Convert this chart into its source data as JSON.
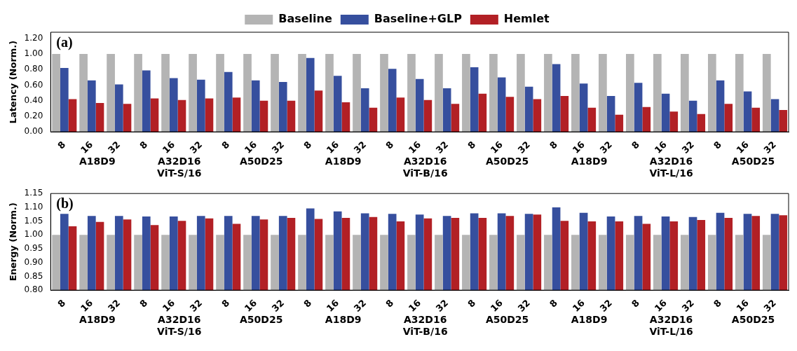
{
  "chart_data": [
    {
      "type": "bar",
      "ylabel": "Latency (Norm.)",
      "categories": [
        "8",
        "16",
        "32",
        "8",
        "16",
        "32",
        "8",
        "16",
        "32",
        "8",
        "16",
        "32",
        "8",
        "16",
        "32",
        "8",
        "16",
        "32",
        "8",
        "16",
        "32",
        "8",
        "16",
        "32",
        "8",
        "16",
        "32"
      ],
      "series": [
        {
          "name": "Baseline",
          "color": "#b4b4b4",
          "values": [
            1,
            1,
            1,
            1,
            1,
            1,
            1,
            1,
            1,
            1,
            1,
            1,
            1,
            1,
            1,
            1,
            1,
            1,
            1,
            1,
            1,
            1,
            1,
            1,
            1,
            1,
            1
          ]
        },
        {
          "name": "Baseline+GLP",
          "color": "#364f9e",
          "values": [
            0.82,
            0.66,
            0.61,
            0.79,
            0.69,
            0.67,
            0.77,
            0.66,
            0.64,
            0.95,
            0.72,
            0.56,
            0.81,
            0.68,
            0.56,
            0.83,
            0.7,
            0.58,
            0.87,
            0.62,
            0.46,
            0.63,
            0.49,
            0.4,
            0.66,
            0.52,
            0.42
          ]
        },
        {
          "name": "Hemlet",
          "color": "#b22025",
          "values": [
            0.42,
            0.37,
            0.36,
            0.43,
            0.41,
            0.43,
            0.44,
            0.4,
            0.4,
            0.53,
            0.38,
            0.31,
            0.44,
            0.41,
            0.36,
            0.49,
            0.45,
            0.42,
            0.46,
            0.31,
            0.22,
            0.32,
            0.26,
            0.23,
            0.36,
            0.31,
            0.28
          ]
        }
      ],
      "ylim": [
        0,
        1.28
      ],
      "yticks": [
        {
          "value": 0,
          "label": "0.00"
        },
        {
          "value": 0.2,
          "label": "0.20"
        },
        {
          "value": 0.4,
          "label": "0.40"
        },
        {
          "value": 0.6,
          "label": "0.60"
        },
        {
          "value": 0.8,
          "label": "0.80"
        },
        {
          "value": 1,
          "label": "1.00"
        },
        {
          "value": 1.2,
          "label": "1.20"
        }
      ],
      "grid": false,
      "legend": "top",
      "annotations": [
        "(a)",
        "A18D9",
        "A32D16",
        "A50D25",
        "A18D9",
        "A32D16",
        "A50D25",
        "A18D9",
        "A32D16",
        "A50D25",
        "ViT-S/16",
        "ViT-B/16",
        "ViT-L/16"
      ]
    },
    {
      "type": "bar",
      "ylabel": "Energy (Norm.)",
      "categories": [
        "8",
        "16",
        "32",
        "8",
        "16",
        "32",
        "8",
        "16",
        "32",
        "8",
        "16",
        "32",
        "8",
        "16",
        "32",
        "8",
        "16",
        "32",
        "8",
        "16",
        "32",
        "8",
        "16",
        "32",
        "8",
        "16",
        "32"
      ],
      "series": [
        {
          "color": "#b4b4b4",
          "values": [
            1,
            1,
            1,
            1,
            1,
            1,
            1,
            1,
            1,
            1,
            1,
            1,
            1,
            1,
            1,
            1,
            1,
            1,
            1,
            1,
            1,
            1,
            1,
            1,
            1,
            1,
            1
          ]
        },
        {
          "color": "#364f9e",
          "values": [
            1.076,
            1.069,
            1.069,
            1.067,
            1.067,
            1.069,
            1.069,
            1.069,
            1.069,
            1.096,
            1.085,
            1.078,
            1.076,
            1.074,
            1.069,
            1.078,
            1.078,
            1.076,
            1.1,
            1.08,
            1.067,
            1.069,
            1.067,
            1.065,
            1.08,
            1.076,
            1.076
          ]
        },
        {
          "color": "#b22025",
          "values": [
            1.031,
            1.047,
            1.056,
            1.036,
            1.051,
            1.06,
            1.04,
            1.056,
            1.062,
            1.058,
            1.062,
            1.065,
            1.049,
            1.06,
            1.062,
            1.062,
            1.069,
            1.074,
            1.051,
            1.049,
            1.049,
            1.04,
            1.049,
            1.054,
            1.062,
            1.069,
            1.071
          ]
        }
      ],
      "ylim": [
        0.8,
        1.15
      ],
      "yticks": [
        {
          "value": 0.8,
          "label": "0.80"
        },
        {
          "value": 0.85,
          "label": "0.85"
        },
        {
          "value": 0.9,
          "label": "0.90"
        },
        {
          "value": 0.95,
          "label": "0.95"
        },
        {
          "value": 1,
          "label": "1.00"
        },
        {
          "value": 1.05,
          "label": "1.05"
        },
        {
          "value": 1.1,
          "label": "1.10"
        },
        {
          "value": 1.15,
          "label": "1.15"
        }
      ],
      "grid": false,
      "legend": false,
      "annotations": [
        "(b)",
        "A18D9",
        "A32D16",
        "A50D25",
        "A18D9",
        "A32D16",
        "A50D25",
        "A18D9",
        "A32D16",
        "A50D25",
        "ViT-S/16",
        "ViT-B/16",
        "ViT-L/16"
      ]
    }
  ]
}
